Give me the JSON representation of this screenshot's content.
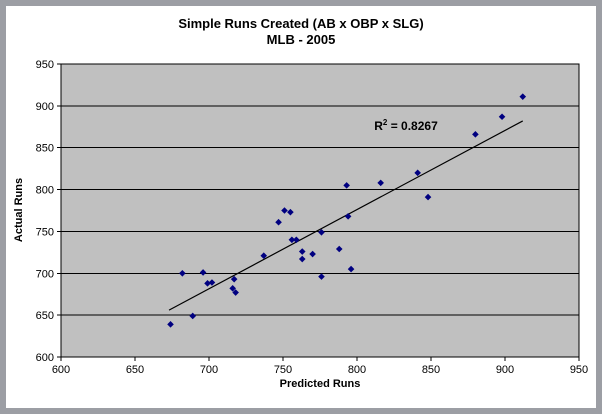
{
  "title": {
    "line1": "Simple Runs Created (AB x OBP x SLG)",
    "line2": "MLB - 2005"
  },
  "chart_data": {
    "type": "scatter",
    "title": "Simple Runs Created (AB x OBP x SLG) MLB - 2005",
    "xlabel": "Predicted Runs",
    "ylabel": "Actual Runs",
    "xlim": [
      600,
      950
    ],
    "ylim": [
      600,
      950
    ],
    "x_ticks": [
      600,
      650,
      700,
      750,
      800,
      850,
      900,
      950
    ],
    "y_ticks": [
      600,
      650,
      700,
      750,
      800,
      850,
      900,
      950
    ],
    "grid": "horizontal",
    "legend": "none",
    "plot_bg": "#C0C0C0",
    "point_color": "#000080",
    "grid_color": "#000000",
    "trendline_color": "#000000",
    "points": [
      [
        674,
        639
      ],
      [
        689,
        649
      ],
      [
        682,
        700
      ],
      [
        696,
        701
      ],
      [
        699,
        688
      ],
      [
        702,
        689
      ],
      [
        717,
        693
      ],
      [
        716,
        682
      ],
      [
        718,
        677
      ],
      [
        737,
        721
      ],
      [
        747,
        761
      ],
      [
        751,
        775
      ],
      [
        755,
        773
      ],
      [
        756,
        740
      ],
      [
        759,
        740
      ],
      [
        763,
        726
      ],
      [
        770,
        723
      ],
      [
        763,
        717
      ],
      [
        776,
        749
      ],
      [
        776,
        696
      ],
      [
        788,
        729
      ],
      [
        794,
        768
      ],
      [
        796,
        705
      ],
      [
        793,
        805
      ],
      [
        816,
        808
      ],
      [
        841,
        820
      ],
      [
        848,
        791
      ],
      [
        880,
        866
      ],
      [
        898,
        887
      ],
      [
        912,
        911
      ]
    ],
    "trendline": {
      "x1": 673,
      "y1": 656,
      "x2": 912,
      "y2": 882
    },
    "r_squared": 0.8267,
    "annotation": {
      "base": "R",
      "sup": "2",
      "rest": " = 0.8267"
    }
  }
}
